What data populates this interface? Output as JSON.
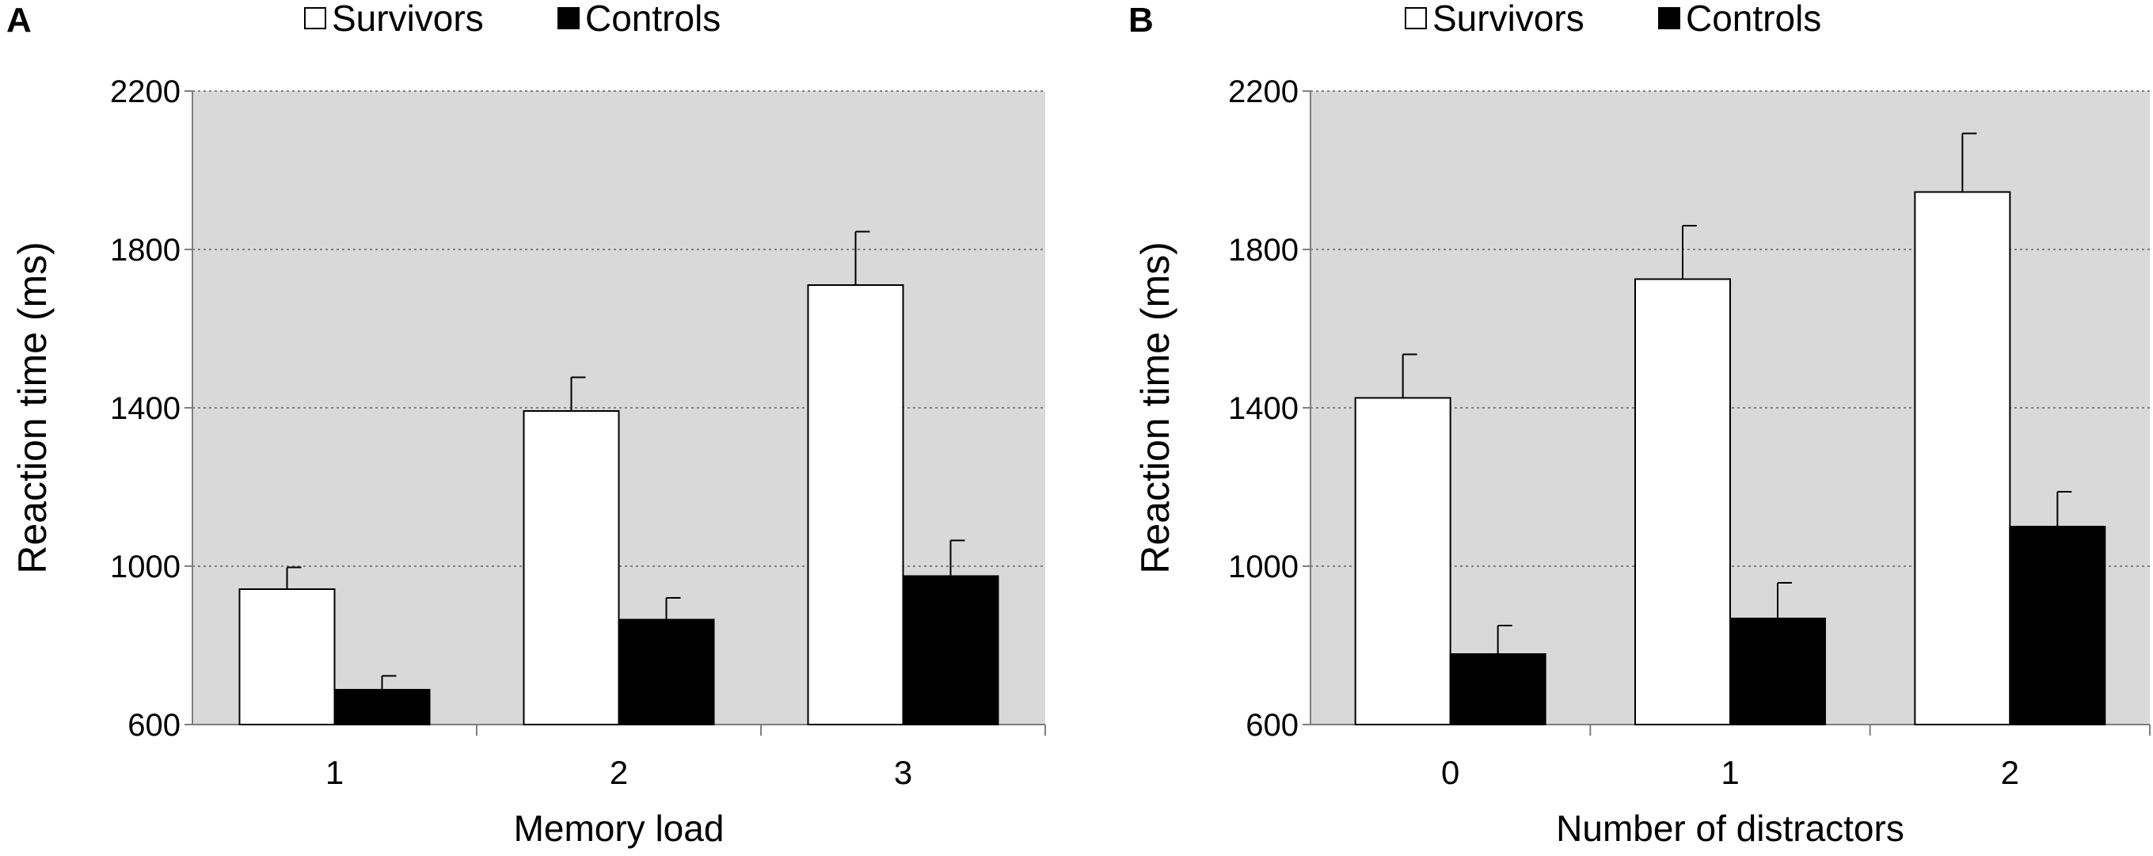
{
  "chart_data": [
    {
      "panel_label": "A",
      "type": "bar",
      "categories": [
        "1",
        "2",
        "3"
      ],
      "series": [
        {
          "name": "Survivors",
          "values": [
            942,
            1392,
            1710
          ],
          "errors": [
            55,
            85,
            135
          ],
          "color": "#ffffff"
        },
        {
          "name": "Controls",
          "values": [
            688,
            865,
            975
          ],
          "errors": [
            35,
            55,
            90
          ],
          "color": "#000000"
        }
      ],
      "legend_symbols": {
        "Survivors": "□",
        "Controls": "■"
      },
      "title": "",
      "xlabel": "Memory load",
      "ylabel": "Reaction time (ms)",
      "ylim": [
        600,
        2200
      ],
      "yticks": [
        "600",
        "1000",
        "1400",
        "1800",
        "2200"
      ],
      "grid": true,
      "legend_position": "top",
      "plot_background": "#d9d9d9"
    },
    {
      "panel_label": "B",
      "type": "bar",
      "categories": [
        "0",
        "1",
        "2"
      ],
      "series": [
        {
          "name": "Survivors",
          "values": [
            1425,
            1725,
            1945
          ],
          "errors": [
            110,
            135,
            148
          ],
          "color": "#ffffff"
        },
        {
          "name": "Controls",
          "values": [
            778,
            868,
            1100
          ],
          "errors": [
            72,
            90,
            88
          ],
          "color": "#000000"
        }
      ],
      "legend_symbols": {
        "Survivors": "□",
        "Controls": "■"
      },
      "title": "",
      "xlabel": "Number of distractors",
      "ylabel": "Reaction time (ms)",
      "ylim": [
        600,
        2200
      ],
      "yticks": [
        "600",
        "1000",
        "1400",
        "1800",
        "2200"
      ],
      "grid": true,
      "legend_position": "top",
      "plot_background": "#d9d9d9"
    }
  ]
}
